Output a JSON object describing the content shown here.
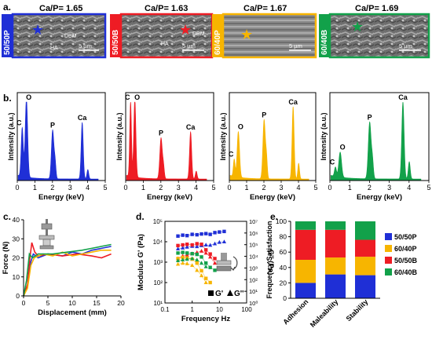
{
  "panels": {
    "a": {
      "letter": "a.",
      "scalebar": "5 µm",
      "samples": [
        {
          "label": "50/50P",
          "ratio": "Ca/P= 1.65",
          "color": "#1f2fd6",
          "annotations": [
            "DBM",
            "HA"
          ]
        },
        {
          "label": "50/50B",
          "ratio": "Ca/P= 1.63",
          "color": "#ee1c24",
          "annotations": [
            "DBM",
            "HA"
          ]
        },
        {
          "label": "60/40P",
          "ratio": "Ca/P= 1.67",
          "color": "#f7b500",
          "annotations": []
        },
        {
          "label": "60/40B",
          "ratio": "Ca/P= 1.69",
          "color": "#12a14a",
          "annotations": []
        }
      ]
    },
    "b": {
      "letter": "b.",
      "xlabel": "Energy (keV)",
      "ylabel": "Intensity (a.u.)"
    },
    "c": {
      "letter": "c.",
      "xlabel": "Displacement (mm)",
      "ylabel": "Force (N)"
    },
    "d": {
      "letter": "d.",
      "xlabel": "Frequency Hz",
      "ylabel": "Modulus G' (Pa)",
      "ylabel2": "G'' (Pa)",
      "legend_gp": "G'",
      "legend_gpp": "G''"
    },
    "e": {
      "letter": "e.",
      "ylabel": "Frequency Satisfaction"
    }
  },
  "chart_data": [
    {
      "type": "line",
      "id": "eds",
      "xlabel": "Energy (keV)",
      "ylabel": "Intensity (a.u.)",
      "xlim": [
        0,
        5
      ],
      "xticks": [
        0,
        1,
        2,
        3,
        4,
        5
      ],
      "series": [
        {
          "name": "50/50P",
          "color": "#1f2fd6",
          "peaks": [
            {
              "x": 0.28,
              "y": 0.62,
              "w": 0.06,
              "label": "C"
            },
            {
              "x": 0.52,
              "y": 1.0,
              "w": 0.07,
              "label": "O"
            },
            {
              "x": 2.01,
              "y": 0.62,
              "w": 0.07,
              "label": "P"
            },
            {
              "x": 2.15,
              "y": 0.2,
              "w": 0.05
            },
            {
              "x": 3.69,
              "y": 0.72,
              "w": 0.06,
              "label": "Ca"
            },
            {
              "x": 4.01,
              "y": 0.12,
              "w": 0.05
            }
          ]
        },
        {
          "name": "50/50B",
          "color": "#ee1c24",
          "peaks": [
            {
              "x": 0.28,
              "y": 0.95,
              "w": 0.05,
              "label": "C"
            },
            {
              "x": 0.52,
              "y": 1.0,
              "w": 0.06,
              "label": "O"
            },
            {
              "x": 2.01,
              "y": 0.52,
              "w": 0.07,
              "label": "P"
            },
            {
              "x": 2.15,
              "y": 0.15,
              "w": 0.05
            },
            {
              "x": 3.69,
              "y": 0.6,
              "w": 0.06,
              "label": "Ca"
            },
            {
              "x": 4.01,
              "y": 0.1,
              "w": 0.05
            }
          ]
        },
        {
          "name": "60/40P",
          "color": "#f7b500",
          "peaks": [
            {
              "x": 0.28,
              "y": 0.22,
              "w": 0.05,
              "label": "C"
            },
            {
              "x": 0.52,
              "y": 0.58,
              "w": 0.07,
              "label": "O"
            },
            {
              "x": 2.01,
              "y": 0.75,
              "w": 0.07,
              "label": "P"
            },
            {
              "x": 2.15,
              "y": 0.25,
              "w": 0.05
            },
            {
              "x": 3.69,
              "y": 0.92,
              "w": 0.06,
              "label": "Ca"
            },
            {
              "x": 4.01,
              "y": 0.2,
              "w": 0.05
            }
          ]
        },
        {
          "name": "60/40B",
          "color": "#12a14a",
          "peaks": [
            {
              "x": 0.28,
              "y": 0.12,
              "w": 0.05,
              "label": "C"
            },
            {
              "x": 0.52,
              "y": 0.32,
              "w": 0.07,
              "label": "O"
            },
            {
              "x": 2.01,
              "y": 0.72,
              "w": 0.07,
              "label": "P"
            },
            {
              "x": 2.15,
              "y": 0.22,
              "w": 0.05
            },
            {
              "x": 3.69,
              "y": 0.98,
              "w": 0.06,
              "label": "Ca"
            },
            {
              "x": 4.01,
              "y": 0.22,
              "w": 0.05
            }
          ]
        }
      ]
    },
    {
      "type": "line",
      "id": "force",
      "xlabel": "Displacement (mm)",
      "ylabel": "Force (N)",
      "xlim": [
        0,
        20
      ],
      "ylim": [
        0,
        40
      ],
      "xticks": [
        0,
        5,
        10,
        15,
        20
      ],
      "yticks": [
        0,
        10,
        20,
        30,
        40
      ],
      "series": [
        {
          "name": "50/50P",
          "color": "#1f2fd6",
          "points": [
            [
              0,
              0
            ],
            [
              0.8,
              5
            ],
            [
              1.5,
              18
            ],
            [
              2,
              22
            ],
            [
              3,
              20
            ],
            [
              5,
              22
            ],
            [
              8,
              21
            ],
            [
              10,
              23
            ],
            [
              12,
              22
            ],
            [
              14,
              24
            ],
            [
              16,
              25
            ],
            [
              18,
              26
            ]
          ]
        },
        {
          "name": "50/50B",
          "color": "#ee1c24",
          "points": [
            [
              0,
              0
            ],
            [
              0.8,
              6
            ],
            [
              1.3,
              20
            ],
            [
              1.7,
              28
            ],
            [
              2.3,
              23
            ],
            [
              3,
              21
            ],
            [
              5,
              22
            ],
            [
              8,
              21
            ],
            [
              11,
              22
            ],
            [
              14,
              21
            ],
            [
              16,
              20
            ],
            [
              18,
              22
            ]
          ]
        },
        {
          "name": "60/40P",
          "color": "#f7b500",
          "points": [
            [
              0,
              0
            ],
            [
              0.8,
              4
            ],
            [
              1.5,
              16
            ],
            [
              2.2,
              20
            ],
            [
              4,
              22
            ],
            [
              6,
              21
            ],
            [
              8,
              23
            ],
            [
              10,
              21
            ],
            [
              12,
              22
            ],
            [
              14,
              23
            ],
            [
              16,
              24
            ],
            [
              18,
              24
            ]
          ]
        },
        {
          "name": "60/40B",
          "color": "#12a14a",
          "points": [
            [
              0,
              0
            ],
            [
              0.6,
              8
            ],
            [
              1.2,
              22
            ],
            [
              1.8,
              20
            ],
            [
              3,
              22
            ],
            [
              6,
              22
            ],
            [
              9,
              23
            ],
            [
              12,
              24
            ],
            [
              14,
              25
            ],
            [
              16,
              26
            ],
            [
              18,
              27
            ]
          ]
        }
      ]
    },
    {
      "type": "scatter",
      "id": "rheology",
      "xlabel": "Frequency Hz",
      "ylabel": "Modulus G' (Pa)",
      "ylabel2": "G'' (Pa)",
      "xlog": true,
      "ylog": true,
      "xlim": [
        0.1,
        100
      ],
      "ylim": [
        10,
        100000
      ],
      "y2lim": [
        1,
        10000000
      ],
      "xtick_labels": [
        "0.1",
        "1",
        "10",
        "100"
      ],
      "ytick_labels": [
        "10¹",
        "10²",
        "10³",
        "10⁴",
        "10⁵"
      ],
      "y2tick_labels": [
        "10⁰",
        "10¹",
        "10²",
        "10³",
        "10⁴",
        "10⁵",
        "10⁶",
        "10⁷"
      ],
      "series": [
        {
          "name": "50/50P G'",
          "marker": "square",
          "color": "#1f2fd6",
          "points": [
            [
              0.3,
              19000
            ],
            [
              0.45,
              21000
            ],
            [
              0.65,
              20000
            ],
            [
              1,
              23000
            ],
            [
              1.5,
              22000
            ],
            [
              2.2,
              24000
            ],
            [
              3.2,
              25000
            ],
            [
              4.6,
              23000
            ],
            [
              6.8,
              28000
            ],
            [
              10,
              30000
            ],
            [
              15,
              32000
            ]
          ]
        },
        {
          "name": "50/50P G''",
          "marker": "triangle",
          "color": "#1f2fd6",
          "points": [
            [
              0.3,
              4500
            ],
            [
              0.45,
              5000
            ],
            [
              0.65,
              5500
            ],
            [
              1,
              6000
            ],
            [
              1.5,
              5800
            ],
            [
              2.2,
              6500
            ],
            [
              3.2,
              7000
            ],
            [
              4.6,
              6800
            ],
            [
              6.8,
              8000
            ],
            [
              10,
              9500
            ],
            [
              15,
              10000
            ]
          ]
        },
        {
          "name": "50/50B G'",
          "marker": "square",
          "color": "#ee1c24",
          "points": [
            [
              0.3,
              6500
            ],
            [
              0.45,
              7000
            ],
            [
              0.65,
              7500
            ],
            [
              1,
              7000
            ],
            [
              1.5,
              8000
            ],
            [
              2.2,
              7500
            ],
            [
              3.2,
              4000
            ],
            [
              4.6,
              2500
            ],
            [
              6.8,
              1500
            ]
          ]
        },
        {
          "name": "50/50B G''",
          "marker": "triangle",
          "color": "#ee1c24",
          "points": [
            [
              0.3,
              1500
            ],
            [
              0.45,
              2000
            ],
            [
              0.65,
              2200
            ],
            [
              1,
              2600
            ],
            [
              1.5,
              3000
            ],
            [
              2.2,
              3500
            ],
            [
              3.2,
              2800
            ],
            [
              4.6,
              1800
            ],
            [
              6.8,
              900
            ]
          ]
        },
        {
          "name": "60/40P G'",
          "marker": "square",
          "color": "#f7b500",
          "points": [
            [
              0.3,
              1500
            ],
            [
              0.45,
              1700
            ],
            [
              0.65,
              1600
            ],
            [
              1,
              1400
            ],
            [
              1.5,
              900
            ],
            [
              2.2,
              380
            ],
            [
              3.2,
              160
            ],
            [
              4.6,
              100
            ]
          ]
        },
        {
          "name": "60/40P G''",
          "marker": "triangle",
          "color": "#f7b500",
          "points": [
            [
              0.3,
              800
            ],
            [
              0.45,
              900
            ],
            [
              0.65,
              850
            ],
            [
              1,
              700
            ],
            [
              1.5,
              400
            ],
            [
              2.2,
              220
            ],
            [
              3.2,
              100
            ]
          ]
        },
        {
          "name": "60/40B G'",
          "marker": "square",
          "color": "#12a14a",
          "points": [
            [
              0.3,
              2800
            ],
            [
              0.45,
              3000
            ],
            [
              0.65,
              2800
            ],
            [
              1,
              2600
            ],
            [
              1.5,
              2400
            ],
            [
              2.2,
              1800
            ],
            [
              3.2,
              900
            ],
            [
              4.6,
              550
            ],
            [
              6.8,
              400
            ]
          ]
        },
        {
          "name": "60/40B G''",
          "marker": "triangle",
          "color": "#12a14a",
          "points": [
            [
              0.3,
              1200
            ],
            [
              0.45,
              1300
            ],
            [
              0.65,
              1400
            ],
            [
              1,
              1500
            ],
            [
              1.5,
              1300
            ],
            [
              2.2,
              900
            ],
            [
              3.2,
              600
            ]
          ]
        }
      ]
    },
    {
      "type": "bar",
      "id": "satisfaction",
      "stacked": true,
      "ylabel": "Frequency Satisfaction",
      "ylim": [
        0,
        100
      ],
      "yticks": [
        0,
        20,
        40,
        60,
        80,
        100
      ],
      "categories": [
        "Adhesion",
        "Maleability",
        "Stability"
      ],
      "series": [
        {
          "name": "50/50P",
          "color": "#1f2fd6",
          "values": [
            20,
            31,
            30
          ]
        },
        {
          "name": "60/40P",
          "color": "#f7b500",
          "values": [
            30,
            22,
            24
          ]
        },
        {
          "name": "50/50B",
          "color": "#ee1c24",
          "values": [
            39,
            36,
            22
          ]
        },
        {
          "name": "60/40B",
          "color": "#12a14a",
          "values": [
            11,
            11,
            24
          ]
        }
      ],
      "legend": "right"
    }
  ]
}
